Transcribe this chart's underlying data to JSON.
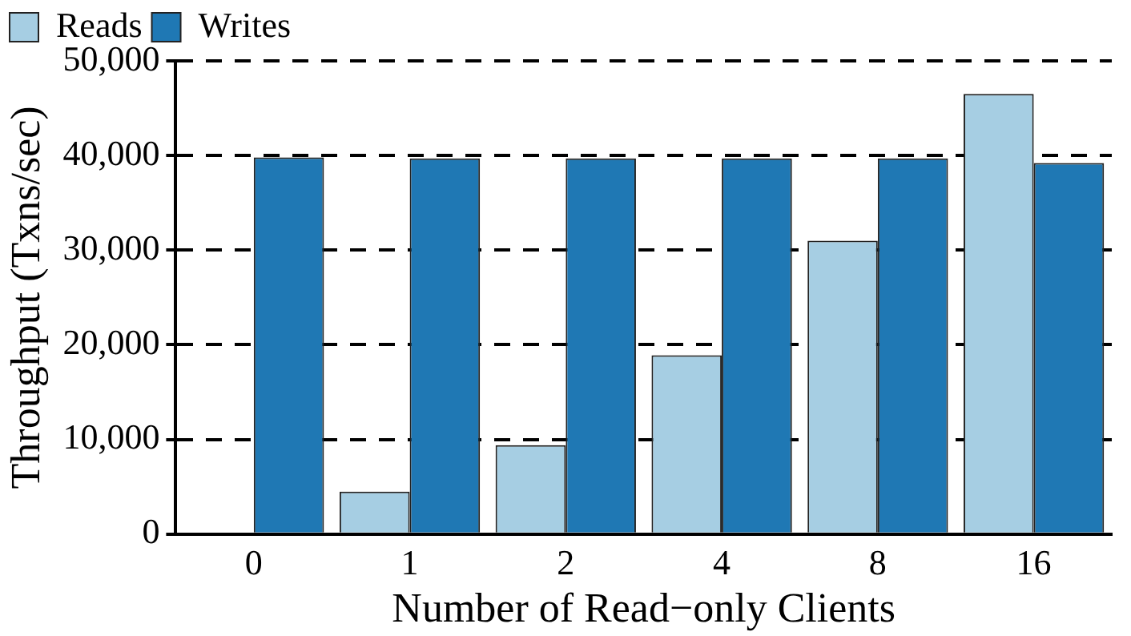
{
  "chart_data": {
    "type": "bar",
    "xlabel": "Number of Read−only Clients",
    "ylabel": "Throughput (Txns/sec)",
    "categories": [
      "0",
      "1",
      "2",
      "4",
      "8",
      "16"
    ],
    "series": [
      {
        "name": "Reads",
        "color": "#a6cee3",
        "values": [
          0,
          4500,
          9400,
          18900,
          31000,
          46500
        ]
      },
      {
        "name": "Writes",
        "color": "#1f78b4",
        "values": [
          39800,
          39700,
          39700,
          39700,
          39700,
          39200
        ]
      }
    ],
    "ylim": [
      0,
      50000
    ],
    "yticks": [
      {
        "value": 0,
        "label": "0"
      },
      {
        "value": 10000,
        "label": "10,000"
      },
      {
        "value": 20000,
        "label": "20,000"
      },
      {
        "value": 30000,
        "label": "30,000"
      },
      {
        "value": 40000,
        "label": "40,000"
      },
      {
        "value": 50000,
        "label": "50,000"
      }
    ],
    "grid": "y",
    "legend": "top"
  }
}
